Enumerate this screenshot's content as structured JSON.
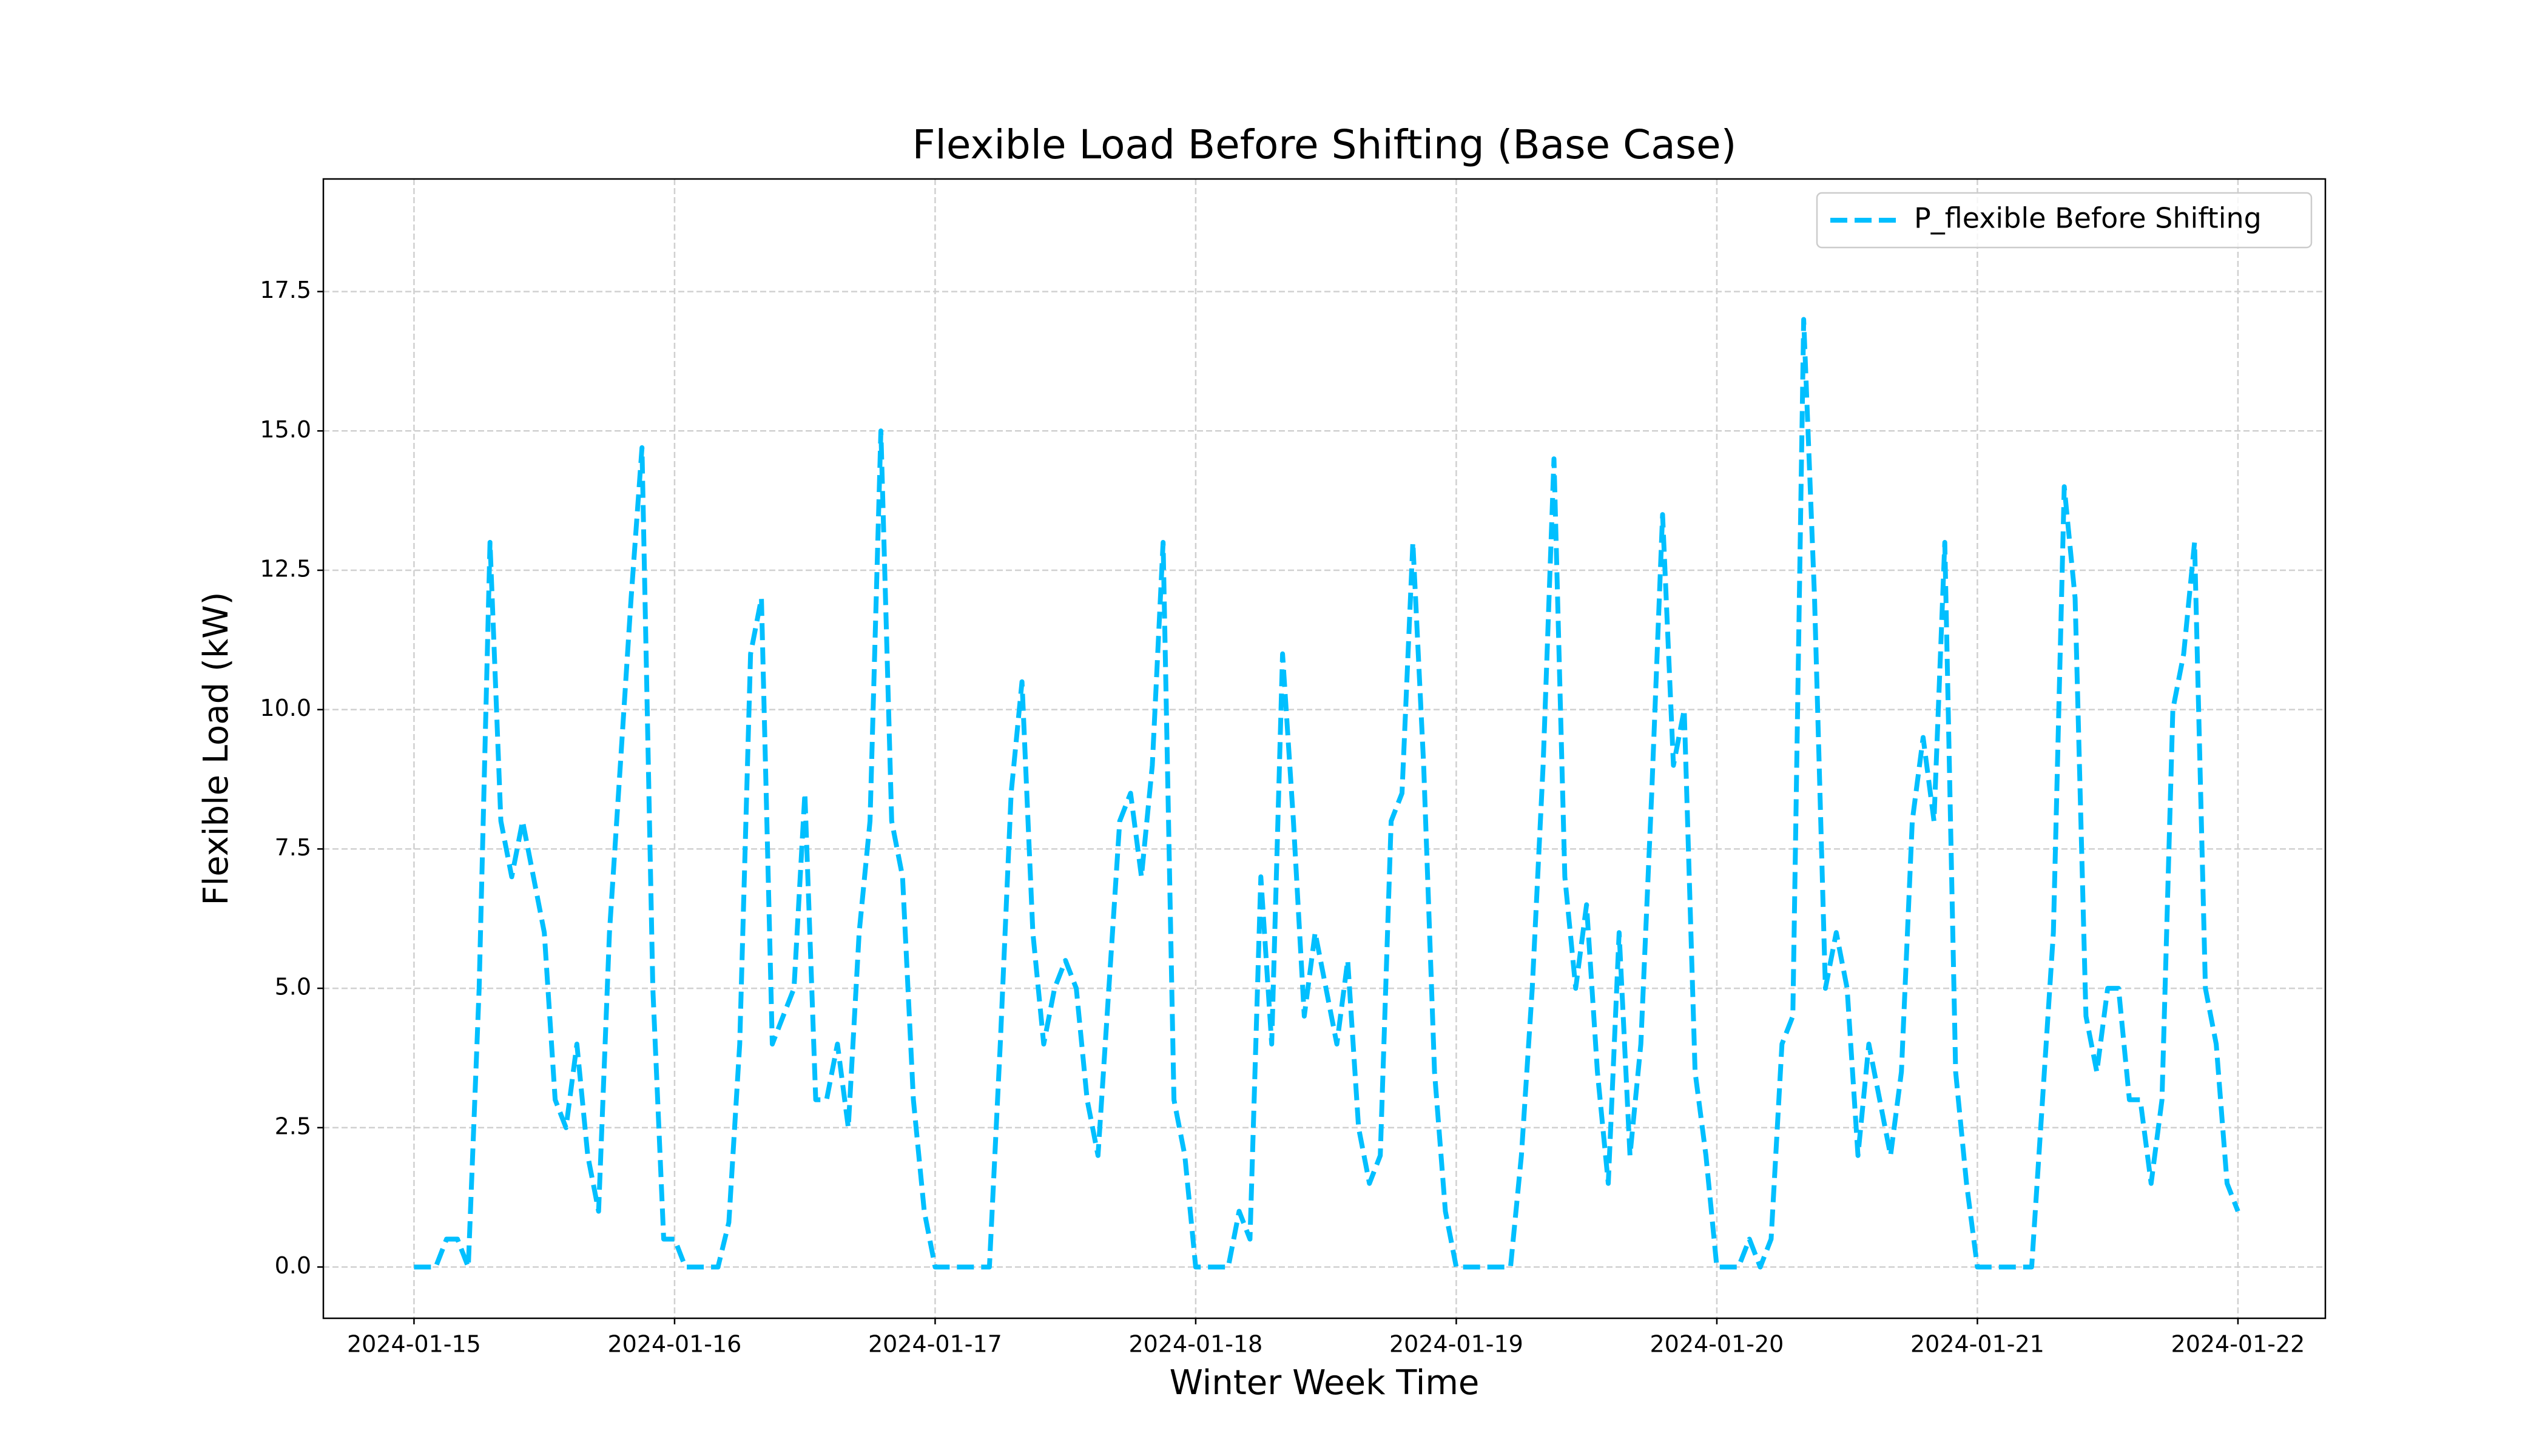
{
  "chart_data": {
    "type": "line",
    "title": "Flexible Load Before Shifting (Base Case)",
    "x_label": "Winter Week Time",
    "y_label": "Flexible Load (kW)",
    "x": [
      0,
      1,
      2,
      3,
      4,
      5,
      6,
      7,
      8,
      9,
      10,
      11,
      12,
      13,
      14,
      15,
      16,
      17,
      18,
      19,
      20,
      21,
      22,
      23,
      24,
      25,
      26,
      27,
      28,
      29,
      30,
      31,
      32,
      33,
      34,
      35,
      36,
      37,
      38,
      39,
      40,
      41,
      42,
      43,
      44,
      45,
      46,
      47,
      48,
      49,
      50,
      51,
      52,
      53,
      54,
      55,
      56,
      57,
      58,
      59,
      60,
      61,
      62,
      63,
      64,
      65,
      66,
      67,
      68,
      69,
      70,
      71,
      72,
      73,
      74,
      75,
      76,
      77,
      78,
      79,
      80,
      81,
      82,
      83,
      84,
      85,
      86,
      87,
      88,
      89,
      90,
      91,
      92,
      93,
      94,
      95,
      96,
      97,
      98,
      99,
      100,
      101,
      102,
      103,
      104,
      105,
      106,
      107,
      108,
      109,
      110,
      111,
      112,
      113,
      114,
      115,
      116,
      117,
      118,
      119,
      120,
      121,
      122,
      123,
      124,
      125,
      126,
      127,
      128,
      129,
      130,
      131,
      132,
      133,
      134,
      135,
      136,
      137,
      138,
      139,
      140,
      141,
      142,
      143,
      144,
      145,
      146,
      147,
      148,
      149,
      150,
      151,
      152,
      153,
      154,
      155,
      156,
      157,
      158,
      159,
      160,
      161,
      162,
      163,
      164,
      165,
      166,
      167,
      168
    ],
    "series": [
      {
        "name": "P_flexible Before Shifting",
        "color": "#00bfff",
        "dashed": true,
        "values": [
          0,
          0,
          0,
          0.5,
          0.5,
          0,
          5,
          13,
          8,
          7,
          8,
          7,
          6,
          3,
          2.5,
          4,
          2,
          1,
          6,
          9,
          12,
          14.7,
          5,
          0.5,
          0.5,
          0,
          0,
          0,
          0,
          0.8,
          4,
          11,
          12,
          4,
          4.5,
          5,
          8.5,
          3,
          3,
          4,
          2.5,
          6,
          8,
          15,
          8,
          7,
          3,
          1,
          0,
          0,
          0,
          0,
          0,
          0,
          4,
          8.5,
          10.5,
          6,
          4,
          5,
          5.5,
          5,
          3,
          2,
          5,
          8,
          8.5,
          7,
          9,
          13,
          3,
          2,
          0,
          0,
          0,
          0,
          1,
          0.5,
          7,
          4,
          11,
          8,
          4.5,
          6,
          5,
          4,
          5.5,
          2.5,
          1.5,
          2,
          8,
          8.5,
          13,
          9,
          3.5,
          1,
          0,
          0,
          0,
          0,
          0,
          0,
          2,
          5,
          9,
          14.5,
          7,
          5,
          6.5,
          3.5,
          1.5,
          6,
          2,
          4,
          8.5,
          13.5,
          9,
          10,
          3.5,
          2,
          0,
          0,
          0,
          0.5,
          0,
          0.5,
          4,
          4.5,
          17,
          12,
          5,
          6,
          5,
          2,
          4,
          3,
          2,
          3.5,
          8,
          9.5,
          8,
          13,
          3.5,
          1.5,
          0,
          0,
          0,
          0,
          0,
          0,
          3,
          6,
          14,
          12,
          4.5,
          3.5,
          5,
          5,
          3,
          3,
          1.5,
          3,
          10,
          11,
          13,
          5,
          4,
          1.5,
          1
        ]
      }
    ],
    "xlim": [
      -8.35,
      176.05
    ],
    "xticks": [
      {
        "value": 0,
        "label": "2024-01-15"
      },
      {
        "value": 24,
        "label": "2024-01-16"
      },
      {
        "value": 48,
        "label": "2024-01-17"
      },
      {
        "value": 72,
        "label": "2024-01-18"
      },
      {
        "value": 96,
        "label": "2024-01-19"
      },
      {
        "value": 120,
        "label": "2024-01-20"
      },
      {
        "value": 144,
        "label": "2024-01-21"
      },
      {
        "value": 168,
        "label": "2024-01-22"
      }
    ],
    "ylim": [
      -0.92,
      19.52
    ],
    "yticks": [
      {
        "value": 0,
        "label": "0.0"
      },
      2.5,
      {
        "value": 5,
        "label": "5.0"
      },
      7.5,
      {
        "value": 10,
        "label": "10.0"
      },
      12.5,
      {
        "value": 15,
        "label": "15.0"
      },
      17.5
    ],
    "grid": true,
    "legend": "upper right"
  }
}
